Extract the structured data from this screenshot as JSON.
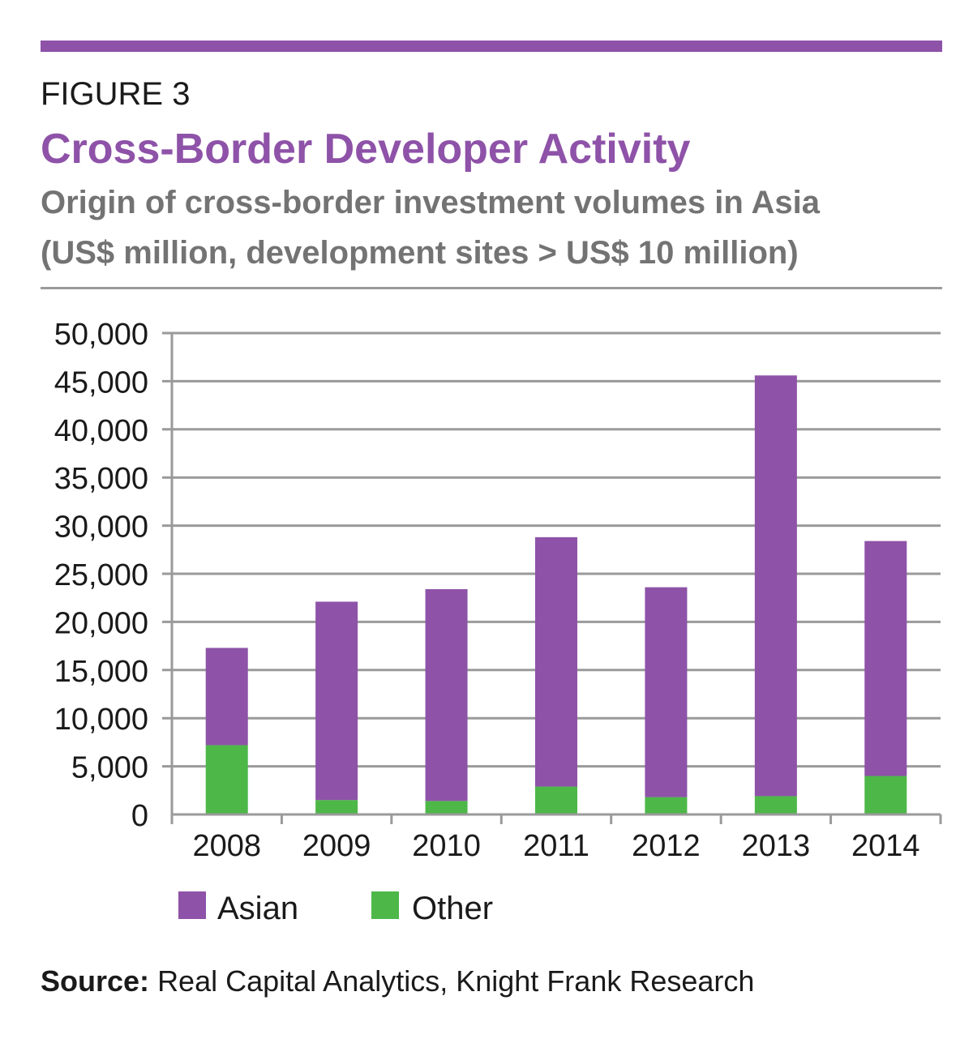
{
  "header": {
    "figure_label": "FIGURE 3",
    "title": "Cross-Border Developer Activity",
    "subtitle_line1": "Origin of cross-border investment volumes in Asia",
    "subtitle_line2": "(US$ million, development sites > US$ 10 million)"
  },
  "colors": {
    "accent": "#8e52a8",
    "asian": "#8e52a8",
    "other": "#4db748",
    "grid": "#9a9a9a",
    "subtitle": "#737373"
  },
  "chart_data": {
    "type": "bar",
    "stacked": true,
    "title": "Cross-Border Developer Activity",
    "xlabel": "",
    "ylabel": "",
    "ylim": [
      0,
      50000
    ],
    "y_ticks": [
      0,
      5000,
      10000,
      15000,
      20000,
      25000,
      30000,
      35000,
      40000,
      45000,
      50000
    ],
    "y_tick_labels": [
      "0",
      "5,000",
      "10,000",
      "15,000",
      "20,000",
      "25,000",
      "30,000",
      "35,000",
      "40,000",
      "45,000",
      "50,000"
    ],
    "categories": [
      "2008",
      "2009",
      "2010",
      "2011",
      "2012",
      "2013",
      "2014"
    ],
    "series": [
      {
        "name": "Other",
        "color": "#4db748",
        "values": [
          7200,
          1500,
          1400,
          2900,
          1800,
          1900,
          4000
        ]
      },
      {
        "name": "Asian",
        "color": "#8e52a8",
        "values": [
          10100,
          20600,
          22000,
          25900,
          21800,
          43700,
          24400
        ]
      }
    ],
    "legend": [
      "Asian",
      "Other"
    ],
    "legend_position": "bottom-left",
    "grid": true
  },
  "source": {
    "label": "Source:",
    "text": "Real Capital Analytics, Knight Frank Research"
  }
}
